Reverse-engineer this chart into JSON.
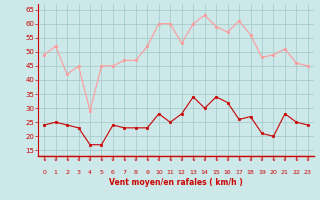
{
  "x": [
    0,
    1,
    2,
    3,
    4,
    5,
    6,
    7,
    8,
    9,
    10,
    11,
    12,
    13,
    14,
    15,
    16,
    17,
    18,
    19,
    20,
    21,
    22,
    23
  ],
  "wind_avg": [
    24,
    25,
    24,
    23,
    17,
    17,
    24,
    23,
    23,
    23,
    28,
    25,
    28,
    34,
    30,
    34,
    32,
    26,
    27,
    21,
    20,
    28,
    25,
    24
  ],
  "wind_gust": [
    49,
    52,
    42,
    45,
    29,
    45,
    45,
    47,
    47,
    52,
    60,
    60,
    53,
    60,
    63,
    59,
    57,
    61,
    56,
    48,
    49,
    51,
    46,
    45
  ],
  "bg_color": "#cce8e8",
  "grid_color": "#aacccc",
  "avg_color": "#cc0000",
  "gust_color": "#ff9999",
  "xlabel": "Vent moyen/en rafales ( km/h )",
  "ylabel_ticks": [
    15,
    20,
    25,
    30,
    35,
    40,
    45,
    50,
    55,
    60,
    65
  ],
  "xlim": [
    -0.5,
    23.5
  ],
  "ylim": [
    13,
    67
  ],
  "xticks": [
    0,
    1,
    2,
    3,
    4,
    5,
    6,
    7,
    8,
    9,
    10,
    11,
    12,
    13,
    14,
    15,
    16,
    17,
    18,
    19,
    20,
    21,
    22,
    23
  ]
}
